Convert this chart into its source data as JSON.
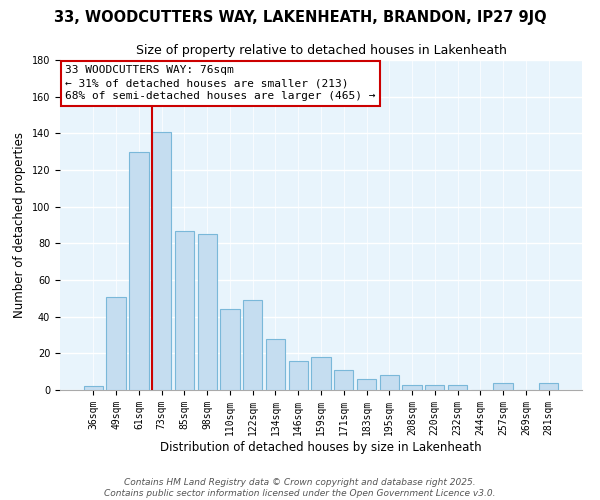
{
  "title": "33, WOODCUTTERS WAY, LAKENHEATH, BRANDON, IP27 9JQ",
  "subtitle": "Size of property relative to detached houses in Lakenheath",
  "xlabel": "Distribution of detached houses by size in Lakenheath",
  "ylabel": "Number of detached properties",
  "categories": [
    "36sqm",
    "49sqm",
    "61sqm",
    "73sqm",
    "85sqm",
    "98sqm",
    "110sqm",
    "122sqm",
    "134sqm",
    "146sqm",
    "159sqm",
    "171sqm",
    "183sqm",
    "195sqm",
    "208sqm",
    "220sqm",
    "232sqm",
    "244sqm",
    "257sqm",
    "269sqm",
    "281sqm"
  ],
  "values": [
    2,
    51,
    130,
    141,
    87,
    85,
    44,
    49,
    28,
    16,
    18,
    11,
    6,
    8,
    3,
    3,
    3,
    0,
    4,
    0,
    4
  ],
  "bar_color": "#c5ddf0",
  "bar_edge_color": "#7ab8d9",
  "vline_x_index": 3,
  "vline_color": "#cc0000",
  "annotation_box_text": "33 WOODCUTTERS WAY: 76sqm\n← 31% of detached houses are smaller (213)\n68% of semi-detached houses are larger (465) →",
  "box_edge_color": "#cc0000",
  "ylim": [
    0,
    180
  ],
  "yticks": [
    0,
    20,
    40,
    60,
    80,
    100,
    120,
    140,
    160,
    180
  ],
  "footer_line1": "Contains HM Land Registry data © Crown copyright and database right 2025.",
  "footer_line2": "Contains public sector information licensed under the Open Government Licence v3.0.",
  "bg_color": "#e8f4fc",
  "grid_color": "#ffffff",
  "title_fontsize": 10.5,
  "subtitle_fontsize": 9,
  "axis_label_fontsize": 8.5,
  "tick_fontsize": 7,
  "annotation_fontsize": 8,
  "footer_fontsize": 6.5
}
